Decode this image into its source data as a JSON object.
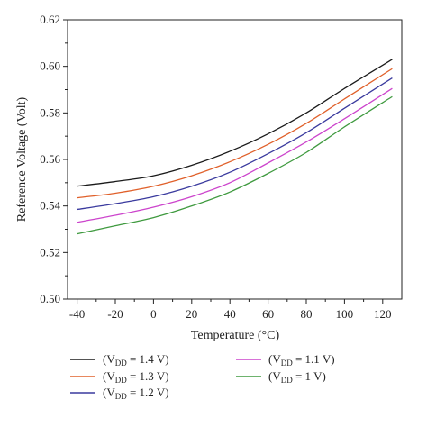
{
  "chart_data": {
    "type": "line",
    "title": "",
    "xlabel": "Temperature (°C)",
    "ylabel": "Reference Voltage (Volt)",
    "xlim": [
      -45,
      130
    ],
    "ylim": [
      0.5,
      0.62
    ],
    "x_ticks": [
      -40,
      -20,
      0,
      20,
      40,
      60,
      80,
      100,
      120
    ],
    "y_ticks": [
      0.5,
      0.52,
      0.54,
      0.56,
      0.58,
      0.6,
      0.62
    ],
    "y_tick_labels": [
      "0.50",
      "0.52",
      "0.54",
      "0.56",
      "0.58",
      "0.60",
      "0.62"
    ],
    "grid": false,
    "legend_placement": "bottom",
    "series": [
      {
        "legend": {
          "prefix": "(V",
          "sub": "DD",
          "suffix": " = 1.4 V)"
        },
        "color": "#1a1a1a",
        "points": [
          [
            -40,
            0.5485
          ],
          [
            -20,
            0.5505
          ],
          [
            0,
            0.553
          ],
          [
            20,
            0.5575
          ],
          [
            40,
            0.5635
          ],
          [
            60,
            0.571
          ],
          [
            80,
            0.58
          ],
          [
            100,
            0.5905
          ],
          [
            125,
            0.603
          ]
        ]
      },
      {
        "legend": {
          "prefix": "(V",
          "sub": "DD",
          "suffix": " = 1.3 V)"
        },
        "color": "#e0602a",
        "points": [
          [
            -40,
            0.5435
          ],
          [
            -20,
            0.5455
          ],
          [
            0,
            0.5485
          ],
          [
            20,
            0.553
          ],
          [
            40,
            0.559
          ],
          [
            60,
            0.5665
          ],
          [
            80,
            0.5755
          ],
          [
            100,
            0.586
          ],
          [
            125,
            0.599
          ]
        ]
      },
      {
        "legend": {
          "prefix": "(V",
          "sub": "DD",
          "suffix": " = 1.2 V)"
        },
        "color": "#3a3a9e",
        "points": [
          [
            -40,
            0.5385
          ],
          [
            -20,
            0.541
          ],
          [
            0,
            0.544
          ],
          [
            20,
            0.5485
          ],
          [
            40,
            0.5545
          ],
          [
            60,
            0.5625
          ],
          [
            80,
            0.5715
          ],
          [
            100,
            0.582
          ],
          [
            125,
            0.595
          ]
        ]
      },
      {
        "legend": {
          "prefix": "(V",
          "sub": "DD",
          "suffix": " = 1.1 V)"
        },
        "color": "#cc44cc",
        "points": [
          [
            -40,
            0.533
          ],
          [
            -20,
            0.536
          ],
          [
            0,
            0.5395
          ],
          [
            20,
            0.544
          ],
          [
            40,
            0.55
          ],
          [
            60,
            0.5585
          ],
          [
            80,
            0.5675
          ],
          [
            100,
            0.5775
          ],
          [
            125,
            0.5905
          ]
        ]
      },
      {
        "legend": {
          "prefix": "(V",
          "sub": "DD",
          "suffix": " = 1 V)"
        },
        "color": "#3f9a3f",
        "points": [
          [
            -40,
            0.528
          ],
          [
            -20,
            0.5315
          ],
          [
            0,
            0.535
          ],
          [
            20,
            0.54
          ],
          [
            40,
            0.546
          ],
          [
            60,
            0.554
          ],
          [
            80,
            0.563
          ],
          [
            100,
            0.574
          ],
          [
            125,
            0.587
          ]
        ]
      }
    ]
  }
}
